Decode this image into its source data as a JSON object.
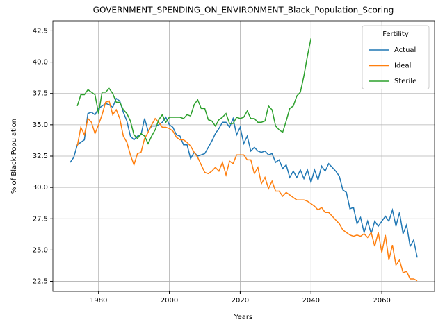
{
  "chart_data": {
    "type": "line",
    "title": "GOVERNMENT_SPENDING_ON_ENVIRONMENT_Black_Population_Scoring",
    "xlabel": "Years",
    "ylabel": "% of Black Population",
    "legend_title": "Fertility",
    "legend": "upper right",
    "grid": true,
    "x": [
      1972,
      1973,
      1974,
      1975,
      1976,
      1977,
      1978,
      1979,
      1980,
      1981,
      1982,
      1983,
      1984,
      1985,
      1986,
      1987,
      1988,
      1989,
      1990,
      1991,
      1992,
      1993,
      1994,
      1995,
      1996,
      1997,
      1998,
      1999,
      2000,
      2001,
      2002,
      2003,
      2004,
      2005,
      2006,
      2007,
      2008,
      2009,
      2010,
      2011,
      2012,
      2013,
      2014,
      2015,
      2016,
      2017,
      2018,
      2019,
      2020,
      2021,
      2022,
      2023,
      2024,
      2025,
      2026,
      2027,
      2028,
      2029,
      2030,
      2031,
      2032,
      2033,
      2034,
      2035,
      2036,
      2037,
      2038,
      2039,
      2040,
      2041,
      2042,
      2043,
      2044,
      2045,
      2046,
      2047,
      2048,
      2049,
      2050,
      2051,
      2052,
      2053,
      2054,
      2055,
      2056,
      2057,
      2058,
      2059,
      2060,
      2061,
      2062,
      2063,
      2064,
      2065,
      2066,
      2067,
      2068,
      2069,
      2070
    ],
    "series": [
      {
        "name": "Actual",
        "color": "#1f77b4",
        "values": [
          32.0,
          32.4,
          33.4,
          33.6,
          33.8,
          35.9,
          36.0,
          35.8,
          36.3,
          36.5,
          36.7,
          36.6,
          36.4,
          37.1,
          36.9,
          36.0,
          35.3,
          34.1,
          33.8,
          34.1,
          34.2,
          35.5,
          34.5,
          34.9,
          34.9,
          35.0,
          35.2,
          35.6,
          35.0,
          34.8,
          34.2,
          34.1,
          33.4,
          33.4,
          32.3,
          32.8,
          32.5,
          32.6,
          32.7,
          33.2,
          33.7,
          34.3,
          34.7,
          35.2,
          35.2,
          34.8,
          35.5,
          34.2,
          34.8,
          33.5,
          34.1,
          32.9,
          33.2,
          32.9,
          32.8,
          32.9,
          32.6,
          32.7,
          32.0,
          32.2,
          31.5,
          31.8,
          30.8,
          31.3,
          30.8,
          31.4,
          30.7,
          31.4,
          30.4,
          31.4,
          30.6,
          31.7,
          31.3,
          31.9,
          31.6,
          31.3,
          30.9,
          29.8,
          29.6,
          28.3,
          28.4,
          27.1,
          27.6,
          26.4,
          27.3,
          26.3,
          27.3,
          26.9,
          27.3,
          27.7,
          27.3,
          28.2,
          26.9,
          28.0,
          26.3,
          27.0,
          25.3,
          25.8,
          24.4
        ]
      },
      {
        "name": "Ideal",
        "color": "#ff7f0e",
        "values": [
          null,
          null,
          33.3,
          34.8,
          34.2,
          35.5,
          35.2,
          34.3,
          35.0,
          35.8,
          36.8,
          36.9,
          35.8,
          36.2,
          35.5,
          34.1,
          33.6,
          32.6,
          31.8,
          32.7,
          32.8,
          33.9,
          34.4,
          35.0,
          35.5,
          35.2,
          34.8,
          34.8,
          34.7,
          34.5,
          34.0,
          33.8,
          33.8,
          33.6,
          33.3,
          32.8,
          32.4,
          31.8,
          31.2,
          31.1,
          31.3,
          31.6,
          31.3,
          32.0,
          31.0,
          32.1,
          31.9,
          32.6,
          32.6,
          32.6,
          32.2,
          32.2,
          31.1,
          31.6,
          30.3,
          30.8,
          29.9,
          30.5,
          29.7,
          29.7,
          29.3,
          29.6,
          29.4,
          29.2,
          29.0,
          29.0,
          29.0,
          28.9,
          28.7,
          28.5,
          28.2,
          28.4,
          28.0,
          28.0,
          27.7,
          27.4,
          27.1,
          26.6,
          26.4,
          26.2,
          26.1,
          26.2,
          26.1,
          26.3,
          26.0,
          26.4,
          25.3,
          26.4,
          24.8,
          26.2,
          24.2,
          25.4,
          23.8,
          24.2,
          23.2,
          23.3,
          22.7,
          22.7,
          22.55
        ]
      },
      {
        "name": "Sterile",
        "color": "#2ca02c",
        "values": [
          null,
          null,
          36.5,
          37.4,
          37.4,
          37.8,
          37.6,
          37.4,
          35.9,
          37.6,
          37.6,
          37.9,
          37.5,
          36.8,
          36.8,
          36.2,
          35.9,
          35.3,
          34.2,
          33.9,
          34.3,
          34.1,
          33.5,
          34.1,
          34.6,
          35.4,
          35.8,
          35.2,
          35.6,
          35.6,
          35.6,
          35.6,
          35.5,
          35.8,
          35.7,
          36.6,
          37.0,
          36.3,
          36.3,
          35.4,
          35.3,
          34.9,
          35.4,
          35.6,
          35.9,
          35.1,
          35.1,
          35.6,
          35.5,
          35.6,
          36.1,
          35.5,
          35.5,
          35.2,
          35.2,
          35.3,
          36.5,
          36.2,
          34.9,
          34.6,
          34.4,
          35.3,
          36.3,
          36.5,
          37.3,
          37.6,
          38.9,
          40.5,
          41.9,
          null,
          null,
          null,
          null,
          null,
          null,
          null,
          null,
          null,
          null,
          null,
          null,
          null,
          null,
          null,
          null,
          null,
          null,
          null,
          null,
          null,
          null,
          null,
          null,
          null,
          null,
          null,
          null,
          null,
          null
        ]
      }
    ],
    "xlim": [
      1967.1,
      2074.9
    ],
    "xticks": [
      1980,
      2000,
      2020,
      2040,
      2060
    ],
    "ylim": [
      21.7,
      43.3
    ],
    "yticks": [
      22.5,
      {
        "value": 25,
        "label": "25.0"
      },
      27.5,
      {
        "value": 30,
        "label": "30.0"
      },
      32.5,
      {
        "value": 35,
        "label": "35.0"
      },
      37.5,
      {
        "value": 40,
        "label": "40.0"
      },
      42.5
    ]
  }
}
